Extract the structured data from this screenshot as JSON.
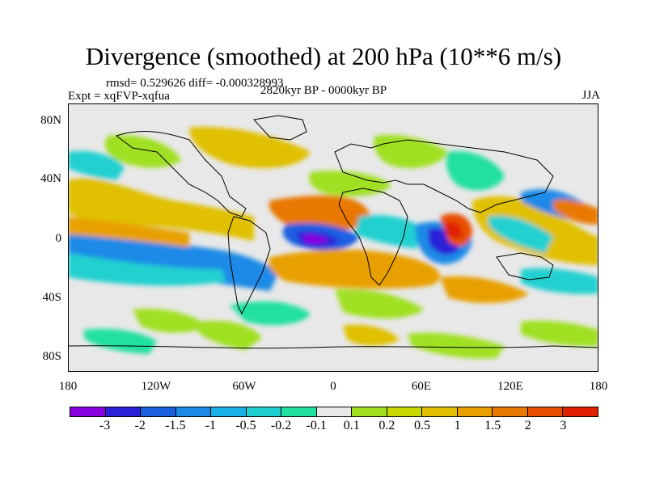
{
  "title": "Divergence (smoothed) at 200 hPa (10**6 m/s)",
  "stats": "rmsd= 0.529626 diff= -0.000328993",
  "experiment": "Expt = xqFVP-xqfua",
  "period": "2820kyr BP - 0000kyr BP",
  "season": "JJA",
  "y_ticks": [
    "80N",
    "40N",
    "0",
    "40S",
    "80S"
  ],
  "x_ticks": [
    "180",
    "120W",
    "60W",
    "0",
    "60E",
    "120E",
    "180"
  ],
  "colorbar": {
    "colors": [
      "#8a00e0",
      "#2a20d8",
      "#1a5fe0",
      "#1a8ae6",
      "#18b0e6",
      "#20d0d0",
      "#20e0a0",
      "#e8e8e8",
      "#a0e020",
      "#c8d800",
      "#e0c000",
      "#e8a000",
      "#e87800",
      "#e85000",
      "#e02000"
    ],
    "labels": [
      "-3",
      "-2",
      "-1.5",
      "-1",
      "-0.5",
      "-0.2",
      "-0.1",
      "0.1",
      "0.2",
      "0.5",
      "1",
      "1.5",
      "2",
      "3"
    ]
  },
  "map_background": "#e8e8e8"
}
